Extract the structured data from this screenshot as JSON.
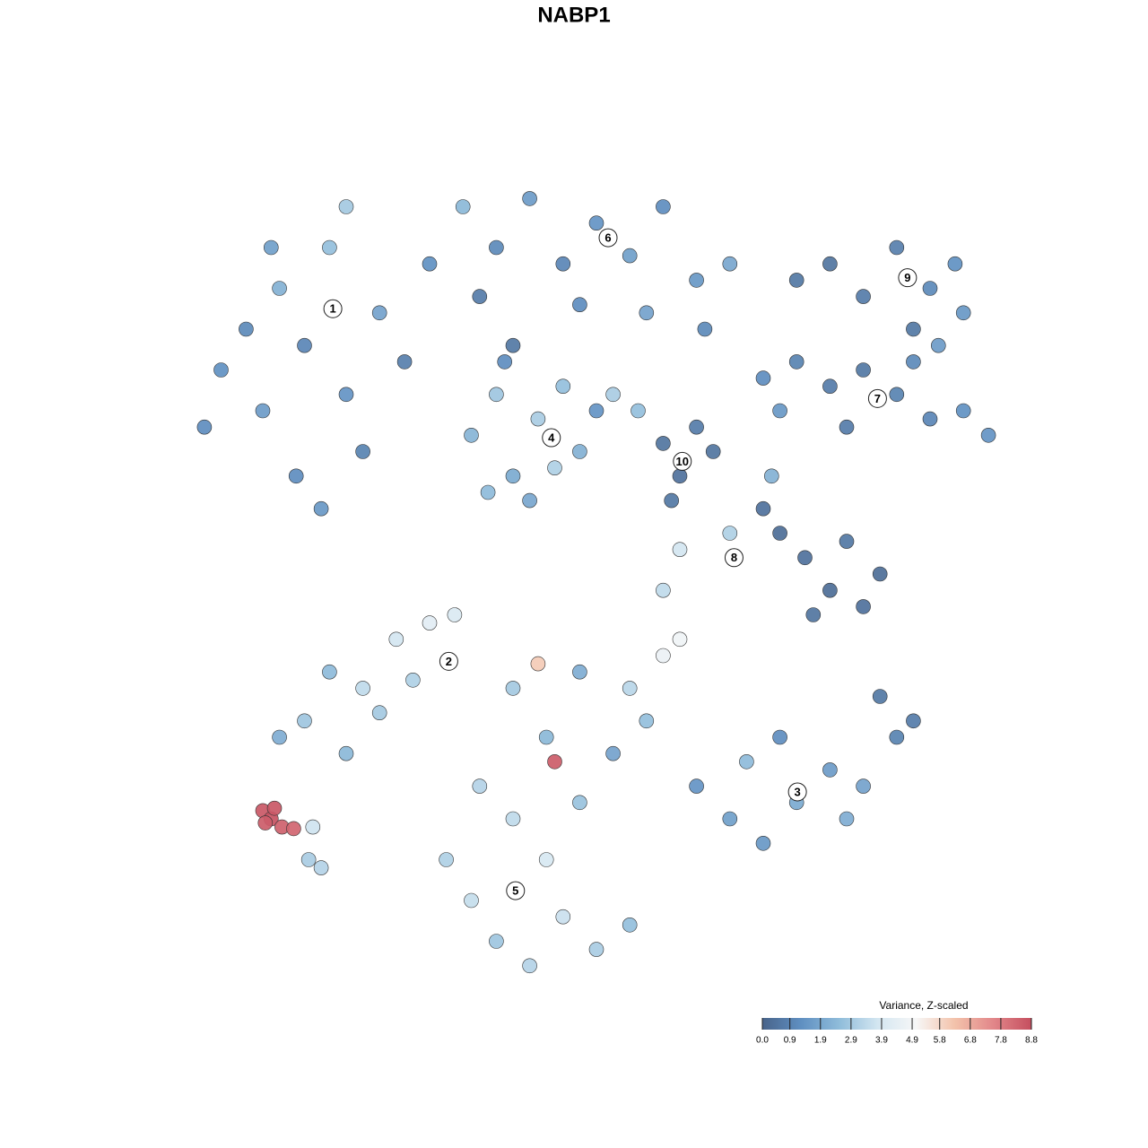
{
  "chart_data": {
    "type": "scatter",
    "title": "NABP1",
    "xlim": [
      0,
      100
    ],
    "ylim": [
      0,
      100
    ],
    "x": [
      5,
      8,
      10,
      12,
      15,
      18,
      20,
      22,
      14,
      17,
      24,
      27,
      3,
      20,
      11,
      30,
      34,
      38,
      42,
      46,
      50,
      54,
      58,
      62,
      66,
      36,
      48,
      56,
      40,
      63,
      35,
      38,
      40,
      43,
      46,
      48,
      42,
      37,
      45,
      50,
      39,
      58,
      60,
      62,
      59,
      64,
      55,
      52,
      74,
      78,
      82,
      86,
      90,
      93,
      94,
      88,
      91,
      70,
      74,
      78,
      82,
      86,
      90,
      94,
      97,
      80,
      88,
      72,
      70,
      72,
      75,
      78,
      82,
      84,
      76,
      80,
      71,
      66,
      60,
      58,
      15,
      18,
      22,
      26,
      30,
      24,
      20,
      28,
      33,
      12,
      62,
      66,
      70,
      74,
      78,
      82,
      86,
      88,
      84,
      80,
      72,
      68,
      32,
      35,
      38,
      42,
      46,
      50,
      54,
      44,
      40,
      36,
      48,
      52,
      44,
      40,
      48,
      54,
      58,
      60,
      56,
      43,
      45,
      10,
      11,
      10.3,
      11.4,
      12.3,
      13.7,
      16,
      17,
      15.5
    ],
    "y": [
      75,
      80,
      70,
      85,
      78,
      90,
      72,
      65,
      62,
      58,
      82,
      76,
      68,
      95,
      90,
      88,
      95,
      90,
      96,
      88,
      93,
      89,
      95,
      86,
      88,
      84,
      83,
      82,
      78,
      80,
      67,
      72,
      62,
      69,
      73,
      65,
      59,
      60,
      63,
      70,
      76,
      66,
      62,
      68,
      59,
      65,
      70,
      72,
      86,
      88,
      84,
      90,
      85,
      88,
      82,
      80,
      78,
      74,
      76,
      73,
      75,
      72,
      69,
      70,
      67,
      68,
      76,
      70,
      58,
      55,
      52,
      48,
      46,
      50,
      45,
      54,
      62,
      55,
      53,
      48,
      32,
      38,
      36,
      42,
      44,
      33,
      28,
      37,
      45,
      30,
      24,
      20,
      17,
      22,
      26,
      24,
      30,
      32,
      35,
      20,
      30,
      27,
      15,
      10,
      5,
      2,
      8,
      4,
      7,
      15,
      20,
      24,
      22,
      28,
      30,
      36,
      38,
      36,
      40,
      42,
      32,
      39,
      27,
      21,
      20,
      19.5,
      21.3,
      19,
      18.8,
      19,
      14,
      15
    ],
    "values": [
      1.3,
      1.1,
      1.6,
      2.2,
      1.0,
      2.6,
      1.4,
      0.9,
      1.2,
      1.5,
      1.8,
      0.8,
      1.2,
      2.9,
      1.7,
      1.3,
      2.4,
      1.1,
      1.6,
      1.0,
      1.4,
      1.7,
      1.2,
      1.5,
      1.9,
      0.7,
      1.2,
      1.8,
      0.6,
      1.1,
      2.3,
      2.8,
      2.0,
      3.0,
      2.6,
      2.2,
      1.9,
      2.5,
      3.1,
      1.4,
      1.2,
      0.5,
      0.4,
      0.7,
      0.6,
      0.5,
      2.6,
      3.0,
      0.6,
      0.5,
      0.7,
      0.8,
      1.1,
      1.3,
      1.5,
      0.6,
      1.6,
      1.2,
      0.9,
      0.7,
      0.6,
      0.9,
      1.0,
      1.3,
      1.4,
      0.7,
      1.1,
      1.5,
      0.4,
      0.3,
      0.4,
      0.3,
      0.4,
      0.3,
      0.5,
      0.6,
      2.2,
      3.1,
      3.8,
      3.4,
      2.8,
      2.5,
      3.4,
      3.8,
      4.3,
      2.9,
      2.4,
      3.1,
      4.0,
      2.1,
      1.4,
      1.7,
      1.5,
      2.0,
      1.6,
      1.8,
      0.9,
      0.7,
      0.6,
      2.1,
      1.2,
      2.5,
      3.1,
      3.5,
      2.8,
      3.2,
      3.6,
      3.0,
      2.6,
      3.9,
      3.4,
      3.2,
      2.7,
      1.8,
      2.4,
      2.9,
      2.1,
      3.3,
      4.6,
      4.8,
      2.6,
      6.1,
      8.5,
      8.6,
      8.7,
      8.5,
      8.6,
      8.4,
      8.3,
      3.7,
      3.2,
      3.0
    ],
    "annotations": [
      {
        "label": "1",
        "x": 18.4,
        "y": 82.5
      },
      {
        "label": "2",
        "x": 32.3,
        "y": 39.3
      },
      {
        "label": "3",
        "x": 74.1,
        "y": 23.3
      },
      {
        "label": "4",
        "x": 44.6,
        "y": 66.7
      },
      {
        "label": "5",
        "x": 40.3,
        "y": 11.2
      },
      {
        "label": "6",
        "x": 51.4,
        "y": 91.2
      },
      {
        "label": "7",
        "x": 83.7,
        "y": 71.5
      },
      {
        "label": "8",
        "x": 66.5,
        "y": 52.0
      },
      {
        "label": "9",
        "x": 87.3,
        "y": 86.3
      },
      {
        "label": "10",
        "x": 60.3,
        "y": 63.8
      }
    ],
    "colorbar_title": "Variance, Z-scaled",
    "clim": [
      0,
      8.8
    ],
    "cticks": [
      {
        "value": 0,
        "label": "0.0"
      },
      0.9,
      1.9,
      2.9,
      3.9,
      4.9,
      5.8,
      6.8,
      7.8,
      8.8
    ],
    "colormap": [
      "#48638a",
      "#5f8fc1",
      "#8fbcda",
      "#d3e6f1",
      "#f7f7f7",
      "#f3c3ab",
      "#e2878a",
      "#c54f5f"
    ]
  }
}
